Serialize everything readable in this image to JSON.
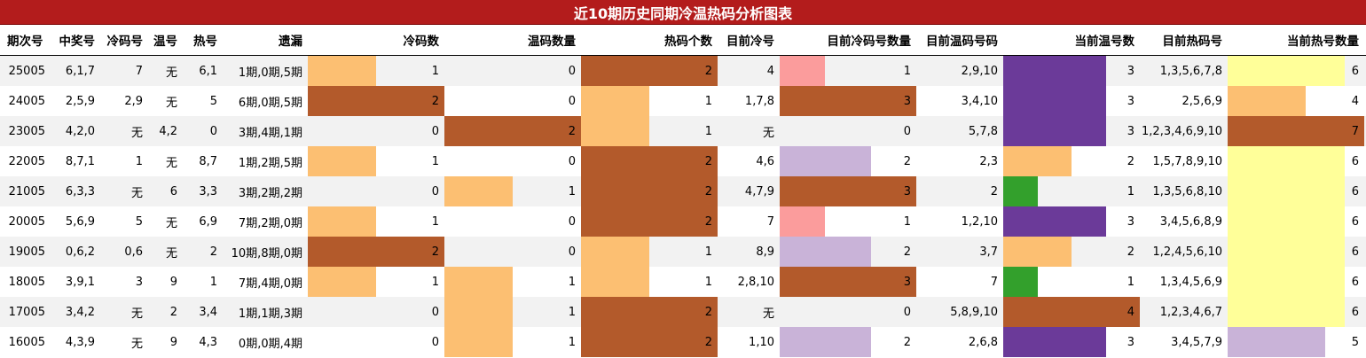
{
  "title": "近10期历史同期冷温热码分析图表",
  "headers": [
    "期次号",
    "中奖号",
    "冷码号",
    "温号",
    "热号",
    "遗漏",
    "冷码数",
    "温码数量",
    "热码个数",
    "目前冷号",
    "目前冷码号数量",
    "目前温码号码",
    "当前温号数",
    "目前热码号",
    "当前热号数量"
  ],
  "colors": {
    "header_bg": "#b31c1c",
    "alt_row": "#f2f2f2",
    "light_orange": "#fcbf72",
    "dark_orange": "#b35a2b",
    "pink": "#fb9c9c",
    "lavender": "#c9b3d8",
    "purple": "#6b3a99",
    "green": "#33a02c",
    "yellow": "#ffff99"
  },
  "bar_scale": {
    "cold_count_max": 2,
    "warm_count_max": 2,
    "hot_count_max": 2,
    "cur_cold_max": 3,
    "cur_warm_max": 4,
    "cur_hot_max": 7
  },
  "rows": [
    {
      "period": "25005",
      "winning": "6,1,7",
      "cold": "7",
      "warm": "无",
      "hot": "6,1",
      "missing": "1期,0期,5期",
      "cold_count": 1,
      "warm_count": 0,
      "hot_count": 2,
      "cur_cold": "4",
      "cur_cold_count": 1,
      "cur_warm": "2,9,10",
      "cur_warm_count": 3,
      "cur_hot": "1,3,5,6,7,8",
      "cur_hot_count": 6
    },
    {
      "period": "24005",
      "winning": "2,5,9",
      "cold": "2,9",
      "warm": "无",
      "hot": "5",
      "missing": "6期,0期,5期",
      "cold_count": 2,
      "warm_count": 0,
      "hot_count": 1,
      "cur_cold": "1,7,8",
      "cur_cold_count": 3,
      "cur_warm": "3,4,10",
      "cur_warm_count": 3,
      "cur_hot": "2,5,6,9",
      "cur_hot_count": 4
    },
    {
      "period": "23005",
      "winning": "4,2,0",
      "cold": "无",
      "warm": "4,2",
      "hot": "0",
      "missing": "3期,4期,1期",
      "cold_count": 0,
      "warm_count": 2,
      "hot_count": 1,
      "cur_cold": "无",
      "cur_cold_count": 0,
      "cur_warm": "5,7,8",
      "cur_warm_count": 3,
      "cur_hot": "1,2,3,4,6,9,10",
      "cur_hot_count": 7
    },
    {
      "period": "22005",
      "winning": "8,7,1",
      "cold": "1",
      "warm": "无",
      "hot": "8,7",
      "missing": "1期,2期,5期",
      "cold_count": 1,
      "warm_count": 0,
      "hot_count": 2,
      "cur_cold": "4,6",
      "cur_cold_count": 2,
      "cur_warm": "2,3",
      "cur_warm_count": 2,
      "cur_hot": "1,5,7,8,9,10",
      "cur_hot_count": 6
    },
    {
      "period": "21005",
      "winning": "6,3,3",
      "cold": "无",
      "warm": "6",
      "hot": "3,3",
      "missing": "3期,2期,2期",
      "cold_count": 0,
      "warm_count": 1,
      "hot_count": 2,
      "cur_cold": "4,7,9",
      "cur_cold_count": 3,
      "cur_warm": "2",
      "cur_warm_count": 1,
      "cur_hot": "1,3,5,6,8,10",
      "cur_hot_count": 6
    },
    {
      "period": "20005",
      "winning": "5,6,9",
      "cold": "5",
      "warm": "无",
      "hot": "6,9",
      "missing": "7期,2期,0期",
      "cold_count": 1,
      "warm_count": 0,
      "hot_count": 2,
      "cur_cold": "7",
      "cur_cold_count": 1,
      "cur_warm": "1,2,10",
      "cur_warm_count": 3,
      "cur_hot": "3,4,5,6,8,9",
      "cur_hot_count": 6
    },
    {
      "period": "19005",
      "winning": "0,6,2",
      "cold": "0,6",
      "warm": "无",
      "hot": "2",
      "missing": "10期,8期,0期",
      "cold_count": 2,
      "warm_count": 0,
      "hot_count": 1,
      "cur_cold": "8,9",
      "cur_cold_count": 2,
      "cur_warm": "3,7",
      "cur_warm_count": 2,
      "cur_hot": "1,2,4,5,6,10",
      "cur_hot_count": 6
    },
    {
      "period": "18005",
      "winning": "3,9,1",
      "cold": "3",
      "warm": "9",
      "hot": "1",
      "missing": "7期,4期,0期",
      "cold_count": 1,
      "warm_count": 1,
      "hot_count": 1,
      "cur_cold": "2,8,10",
      "cur_cold_count": 3,
      "cur_warm": "7",
      "cur_warm_count": 1,
      "cur_hot": "1,3,4,5,6,9",
      "cur_hot_count": 6
    },
    {
      "period": "17005",
      "winning": "3,4,2",
      "cold": "无",
      "warm": "2",
      "hot": "3,4",
      "missing": "1期,1期,3期",
      "cold_count": 0,
      "warm_count": 1,
      "hot_count": 2,
      "cur_cold": "无",
      "cur_cold_count": 0,
      "cur_warm": "5,8,9,10",
      "cur_warm_count": 4,
      "cur_hot": "1,2,3,4,6,7",
      "cur_hot_count": 6
    },
    {
      "period": "16005",
      "winning": "4,3,9",
      "cold": "无",
      "warm": "9",
      "hot": "4,3",
      "missing": "0期,0期,4期",
      "cold_count": 0,
      "warm_count": 1,
      "hot_count": 2,
      "cur_cold": "1,10",
      "cur_cold_count": 2,
      "cur_warm": "2,6,8",
      "cur_warm_count": 3,
      "cur_hot": "3,4,5,7,9",
      "cur_hot_count": 5
    }
  ],
  "bar_colors": [
    {
      "cold": "light_orange",
      "warm": "none",
      "hot": "dark_orange",
      "cur_cold": "pink",
      "cur_warm": "purple",
      "cur_hot": "yellow"
    },
    {
      "cold": "dark_orange",
      "warm": "none",
      "hot": "light_orange",
      "cur_cold": "dark_orange",
      "cur_warm": "purple",
      "cur_hot": "light_orange"
    },
    {
      "cold": "none",
      "warm": "dark_orange",
      "hot": "light_orange",
      "cur_cold": "none",
      "cur_warm": "purple",
      "cur_hot": "dark_orange"
    },
    {
      "cold": "light_orange",
      "warm": "none",
      "hot": "dark_orange",
      "cur_cold": "lavender",
      "cur_warm": "light_orange",
      "cur_hot": "yellow"
    },
    {
      "cold": "none",
      "warm": "light_orange",
      "hot": "dark_orange",
      "cur_cold": "dark_orange",
      "cur_warm": "green",
      "cur_hot": "yellow"
    },
    {
      "cold": "light_orange",
      "warm": "none",
      "hot": "dark_orange",
      "cur_cold": "pink",
      "cur_warm": "purple",
      "cur_hot": "yellow"
    },
    {
      "cold": "dark_orange",
      "warm": "none",
      "hot": "light_orange",
      "cur_cold": "lavender",
      "cur_warm": "light_orange",
      "cur_hot": "yellow"
    },
    {
      "cold": "light_orange",
      "warm": "light_orange",
      "hot": "light_orange",
      "cur_cold": "dark_orange",
      "cur_warm": "green",
      "cur_hot": "yellow"
    },
    {
      "cold": "none",
      "warm": "light_orange",
      "hot": "dark_orange",
      "cur_cold": "none",
      "cur_warm": "dark_orange",
      "cur_hot": "yellow"
    },
    {
      "cold": "none",
      "warm": "light_orange",
      "hot": "dark_orange",
      "cur_cold": "lavender",
      "cur_warm": "purple",
      "cur_hot": "lavender"
    }
  ]
}
